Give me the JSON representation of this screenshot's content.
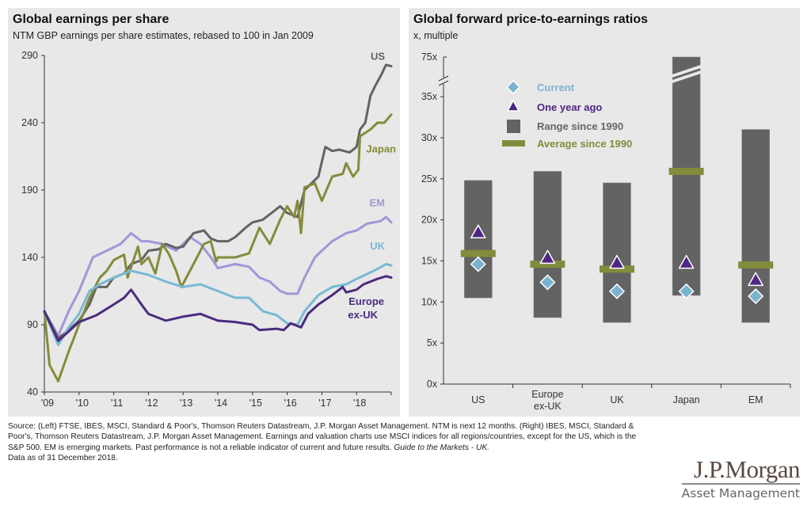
{
  "chart_data": [
    {
      "type": "line",
      "title": "Global earnings per share",
      "subtitle": "NTM GBP earnings per share estimates, rebased to 100 in Jan 2009",
      "xlabel": "",
      "ylabel": "",
      "ylim": [
        40,
        290
      ],
      "yticks": [
        40,
        90,
        140,
        190,
        240,
        290
      ],
      "ytick_labels": [
        "40",
        "90",
        "140",
        "190",
        "240",
        "290"
      ],
      "xlim": [
        2009,
        2019
      ],
      "xticks": [
        2009,
        2010,
        2011,
        2012,
        2013,
        2014,
        2015,
        2016,
        2017,
        2018
      ],
      "xtick_labels": [
        "'09",
        "'10",
        "'11",
        "'12",
        "'13",
        "'14",
        "'15",
        "'16",
        "'17",
        "'18"
      ],
      "grid": false,
      "series": [
        {
          "name": "US",
          "color": "#636363",
          "label_color": "#636363",
          "points": [
            [
              2009.0,
              100
            ],
            [
              2009.4,
              80
            ],
            [
              2009.7,
              86
            ],
            [
              2010.0,
              93
            ],
            [
              2010.3,
              105
            ],
            [
              2010.5,
              118
            ],
            [
              2010.8,
              118
            ],
            [
              2011.0,
              125
            ],
            [
              2011.3,
              128
            ],
            [
              2011.5,
              135
            ],
            [
              2011.8,
              138
            ],
            [
              2012.0,
              145
            ],
            [
              2012.3,
              146
            ],
            [
              2012.5,
              150
            ],
            [
              2012.8,
              147
            ],
            [
              2013.0,
              148
            ],
            [
              2013.3,
              158
            ],
            [
              2013.6,
              160
            ],
            [
              2013.8,
              154
            ],
            [
              2014.0,
              152
            ],
            [
              2014.3,
              152
            ],
            [
              2014.5,
              155
            ],
            [
              2014.8,
              162
            ],
            [
              2015.0,
              166
            ],
            [
              2015.3,
              168
            ],
            [
              2015.5,
              172
            ],
            [
              2015.8,
              178
            ],
            [
              2016.0,
              173
            ],
            [
              2016.3,
              170
            ],
            [
              2016.5,
              190
            ],
            [
              2016.7,
              195
            ],
            [
              2016.9,
              200
            ],
            [
              2017.1,
              222
            ],
            [
              2017.3,
              219
            ],
            [
              2017.5,
              220
            ],
            [
              2017.8,
              218
            ],
            [
              2018.0,
              222
            ],
            [
              2018.1,
              235
            ],
            [
              2018.25,
              240
            ],
            [
              2018.4,
              260
            ],
            [
              2018.55,
              268
            ],
            [
              2018.7,
              275
            ],
            [
              2018.85,
              283
            ],
            [
              2019.0,
              282
            ]
          ]
        },
        {
          "name": "Japan",
          "color": "#858b3a",
          "label_color": "#858b3a",
          "points": [
            [
              2009.0,
              100
            ],
            [
              2009.15,
              60
            ],
            [
              2009.4,
              48
            ],
            [
              2009.7,
              70
            ],
            [
              2010.0,
              90
            ],
            [
              2010.3,
              110
            ],
            [
              2010.6,
              125
            ],
            [
              2010.8,
              130
            ],
            [
              2011.0,
              138
            ],
            [
              2011.3,
              142
            ],
            [
              2011.4,
              125
            ],
            [
              2011.7,
              148
            ],
            [
              2011.8,
              135
            ],
            [
              2012.0,
              140
            ],
            [
              2012.2,
              128
            ],
            [
              2012.4,
              150
            ],
            [
              2012.6,
              142
            ],
            [
              2012.8,
              130
            ],
            [
              2012.95,
              118
            ],
            [
              2013.3,
              135
            ],
            [
              2013.6,
              150
            ],
            [
              2013.8,
              152
            ],
            [
              2013.95,
              137
            ],
            [
              2014.0,
              140
            ],
            [
              2014.5,
              140
            ],
            [
              2014.9,
              143
            ],
            [
              2015.2,
              162
            ],
            [
              2015.5,
              150
            ],
            [
              2015.8,
              168
            ],
            [
              2016.0,
              178
            ],
            [
              2016.2,
              170
            ],
            [
              2016.3,
              182
            ],
            [
              2016.4,
              158
            ],
            [
              2016.5,
              192
            ],
            [
              2016.8,
              195
            ],
            [
              2017.0,
              182
            ],
            [
              2017.3,
              200
            ],
            [
              2017.6,
              202
            ],
            [
              2017.7,
              210
            ],
            [
              2017.9,
              200
            ],
            [
              2018.05,
              205
            ],
            [
              2018.1,
              230
            ],
            [
              2018.4,
              235
            ],
            [
              2018.6,
              240
            ],
            [
              2018.8,
              240
            ],
            [
              2019.0,
              246
            ]
          ]
        },
        {
          "name": "EM",
          "color": "#a097d8",
          "label_color": "#a097d8",
          "points": [
            [
              2009.0,
              100
            ],
            [
              2009.4,
              82
            ],
            [
              2009.7,
              100
            ],
            [
              2010.0,
              115
            ],
            [
              2010.4,
              140
            ],
            [
              2010.8,
              145
            ],
            [
              2011.2,
              150
            ],
            [
              2011.5,
              158
            ],
            [
              2011.8,
              152
            ],
            [
              2012.0,
              152
            ],
            [
              2012.4,
              150
            ],
            [
              2012.8,
              145
            ],
            [
              2013.2,
              155
            ],
            [
              2013.5,
              150
            ],
            [
              2013.8,
              140
            ],
            [
              2014.0,
              132
            ],
            [
              2014.5,
              135
            ],
            [
              2014.9,
              133
            ],
            [
              2015.2,
              125
            ],
            [
              2015.5,
              122
            ],
            [
              2015.8,
              115
            ],
            [
              2016.0,
              113
            ],
            [
              2016.3,
              113
            ],
            [
              2016.5,
              125
            ],
            [
              2016.8,
              140
            ],
            [
              2017.0,
              145
            ],
            [
              2017.3,
              152
            ],
            [
              2017.7,
              158
            ],
            [
              2018.0,
              160
            ],
            [
              2018.3,
              165
            ],
            [
              2018.7,
              167
            ],
            [
              2018.85,
              170
            ],
            [
              2019.0,
              166
            ]
          ]
        },
        {
          "name": "UK",
          "color": "#79b9d4",
          "label_color": "#79b9d4",
          "points": [
            [
              2009.0,
              100
            ],
            [
              2009.4,
              75
            ],
            [
              2009.7,
              88
            ],
            [
              2010.0,
              98
            ],
            [
              2010.3,
              115
            ],
            [
              2010.6,
              120
            ],
            [
              2011.0,
              125
            ],
            [
              2011.5,
              130
            ],
            [
              2012.0,
              127
            ],
            [
              2012.5,
              122
            ],
            [
              2013.0,
              118
            ],
            [
              2013.5,
              120
            ],
            [
              2014.0,
              115
            ],
            [
              2014.5,
              110
            ],
            [
              2014.9,
              110
            ],
            [
              2015.3,
              100
            ],
            [
              2015.7,
              97
            ],
            [
              2016.0,
              91
            ],
            [
              2016.3,
              90
            ],
            [
              2016.5,
              100
            ],
            [
              2016.9,
              112
            ],
            [
              2017.3,
              118
            ],
            [
              2017.7,
              120
            ],
            [
              2018.0,
              124
            ],
            [
              2018.5,
              130
            ],
            [
              2018.85,
              135
            ],
            [
              2019.0,
              134
            ]
          ]
        },
        {
          "name": "Europe ex-UK",
          "label_lines": [
            "Europe",
            "ex-UK"
          ],
          "color": "#4b2b7f",
          "label_color": "#4b2b7f",
          "points": [
            [
              2009.0,
              100
            ],
            [
              2009.4,
              78
            ],
            [
              2009.7,
              85
            ],
            [
              2010.0,
              92
            ],
            [
              2010.5,
              97
            ],
            [
              2011.0,
              105
            ],
            [
              2011.3,
              110
            ],
            [
              2011.5,
              116
            ],
            [
              2011.8,
              105
            ],
            [
              2012.0,
              98
            ],
            [
              2012.5,
              93
            ],
            [
              2013.0,
              96
            ],
            [
              2013.5,
              98
            ],
            [
              2014.0,
              93
            ],
            [
              2014.5,
              92
            ],
            [
              2015.0,
              90
            ],
            [
              2015.2,
              86
            ],
            [
              2015.7,
              87
            ],
            [
              2015.9,
              86
            ],
            [
              2016.1,
              91
            ],
            [
              2016.4,
              88
            ],
            [
              2016.6,
              98
            ],
            [
              2016.9,
              105
            ],
            [
              2017.3,
              112
            ],
            [
              2017.6,
              118
            ],
            [
              2017.7,
              114
            ],
            [
              2018.0,
              116
            ],
            [
              2018.2,
              120
            ],
            [
              2018.6,
              124
            ],
            [
              2018.85,
              126
            ],
            [
              2019.0,
              125
            ]
          ]
        }
      ]
    },
    {
      "type": "range-bar",
      "title": "Global forward price-to-earnings ratios",
      "subtitle": "x, multiple",
      "xlabel": "",
      "ylabel": "",
      "ylim": [
        0,
        37
      ],
      "axis_break": {
        "shown_top_label": "75x",
        "top_value": 75
      },
      "yticks": [
        0,
        5,
        10,
        15,
        20,
        25,
        30,
        35
      ],
      "ytick_labels": [
        "0x",
        "5x",
        "10x",
        "15x",
        "20x",
        "25x",
        "30x",
        "35x"
      ],
      "grid": false,
      "categories": [
        "US",
        "Europe ex-UK",
        "UK",
        "Japan",
        "EM"
      ],
      "category_label_lines": [
        [
          "US"
        ],
        [
          "Europe",
          "ex-UK"
        ],
        [
          "UK"
        ],
        [
          "Japan"
        ],
        [
          "EM"
        ]
      ],
      "legend": {
        "placement": "top-left",
        "items": [
          {
            "label": "Current",
            "marker": "diamond",
            "color": "#7ab3d0"
          },
          {
            "label": "One year ago",
            "marker": "triangle",
            "color": "#4f2683"
          },
          {
            "label": "Range since 1990",
            "marker": "square",
            "color": "#636363"
          },
          {
            "label": "Average since 1990",
            "marker": "bar",
            "color": "#838b3c"
          }
        ]
      },
      "series": [
        {
          "name": "Range since 1990 (low)",
          "values": [
            10.5,
            8.1,
            7.5,
            10.8,
            7.5
          ]
        },
        {
          "name": "Range since 1990 (high)",
          "values": [
            24.8,
            25.9,
            24.5,
            75,
            31.0
          ]
        },
        {
          "name": "Average since 1990",
          "values": [
            15.9,
            14.6,
            14.0,
            25.9,
            14.5
          ]
        },
        {
          "name": "One year ago",
          "values": [
            18.3,
            15.2,
            14.6,
            14.6,
            12.5
          ]
        },
        {
          "name": "Current",
          "values": [
            14.6,
            12.4,
            11.3,
            11.3,
            10.7
          ]
        }
      ]
    }
  ],
  "footnote": {
    "text": "Source: (Left) FTSE, IBES, MSCI, Standard & Poor's, Thomson Reuters Datastream, J.P. Morgan Asset Management. NTM is next 12 months. (Right) IBES, MSCI, Standard & Poor's, Thomson Reuters Datastream, J.P. Morgan Asset Management. Earnings and valuation charts use MSCI indices for all regions/countries, except for the US, which is the S&P 500. EM is emerging markets. Past performance is not a reliable indicator of current and future results. ",
    "italic": "Guide to the Markets - UK.",
    "date": "Data as of 31 December 2018."
  },
  "logo": {
    "brand": "J.P.Morgan",
    "sub": "Asset Management"
  }
}
